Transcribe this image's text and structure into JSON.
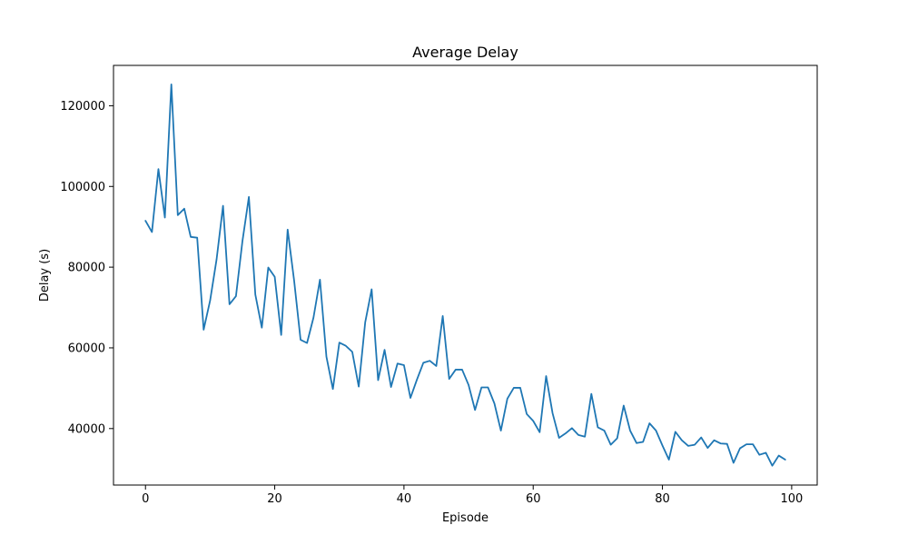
{
  "chart_data": {
    "type": "line",
    "title": "Average Delay",
    "xlabel": "Episode",
    "ylabel": "Delay (s)",
    "xlim": [
      -4.95,
      103.95
    ],
    "ylim": [
      26000,
      130000
    ],
    "xticks": [
      0,
      20,
      40,
      60,
      80,
      100
    ],
    "yticks": [
      40000,
      60000,
      80000,
      100000,
      120000
    ],
    "grid": false,
    "series": [
      {
        "color": "#1f77b4",
        "x": [
          0,
          1,
          2,
          3,
          4,
          5,
          6,
          7,
          8,
          9,
          10,
          11,
          12,
          13,
          14,
          15,
          16,
          17,
          18,
          19,
          20,
          21,
          22,
          23,
          24,
          25,
          26,
          27,
          28,
          29,
          30,
          31,
          32,
          33,
          34,
          35,
          36,
          37,
          38,
          39,
          40,
          41,
          42,
          43,
          44,
          45,
          46,
          47,
          48,
          49,
          50,
          51,
          52,
          53,
          54,
          55,
          56,
          57,
          58,
          59,
          60,
          61,
          62,
          63,
          64,
          65,
          66,
          67,
          68,
          69,
          70,
          71,
          72,
          73,
          74,
          75,
          76,
          77,
          78,
          79,
          80,
          81,
          82,
          83,
          84,
          85,
          86,
          87,
          88,
          89,
          90,
          91,
          92,
          93,
          94,
          95,
          96,
          97,
          98,
          99
        ],
        "y": [
          91500,
          88700,
          104300,
          92300,
          125300,
          92900,
          94500,
          87500,
          87300,
          64500,
          71700,
          81900,
          95200,
          70800,
          72800,
          86400,
          97400,
          73200,
          65000,
          79900,
          77600,
          63200,
          89300,
          76700,
          62000,
          61200,
          67500,
          76900,
          57800,
          49800,
          61300,
          60500,
          59000,
          50400,
          66300,
          74500,
          52000,
          59500,
          50300,
          56100,
          55700,
          47600,
          52100,
          56300,
          56800,
          55500,
          67900,
          52300,
          54600,
          54600,
          50800,
          44600,
          50200,
          50200,
          46200,
          39500,
          47400,
          50100,
          50100,
          43600,
          41900,
          39100,
          53000,
          43800,
          37700,
          38800,
          40100,
          38400,
          38000,
          48600,
          40300,
          39500,
          36000,
          37600,
          45700,
          39500,
          36400,
          36700,
          41300,
          39500,
          35800,
          32300,
          39200,
          37100,
          35700,
          36000,
          37800,
          35200,
          37100,
          36300,
          36200,
          31500,
          35100,
          36100,
          36100,
          33500,
          34000,
          30800,
          33300,
          32300
        ]
      }
    ]
  }
}
